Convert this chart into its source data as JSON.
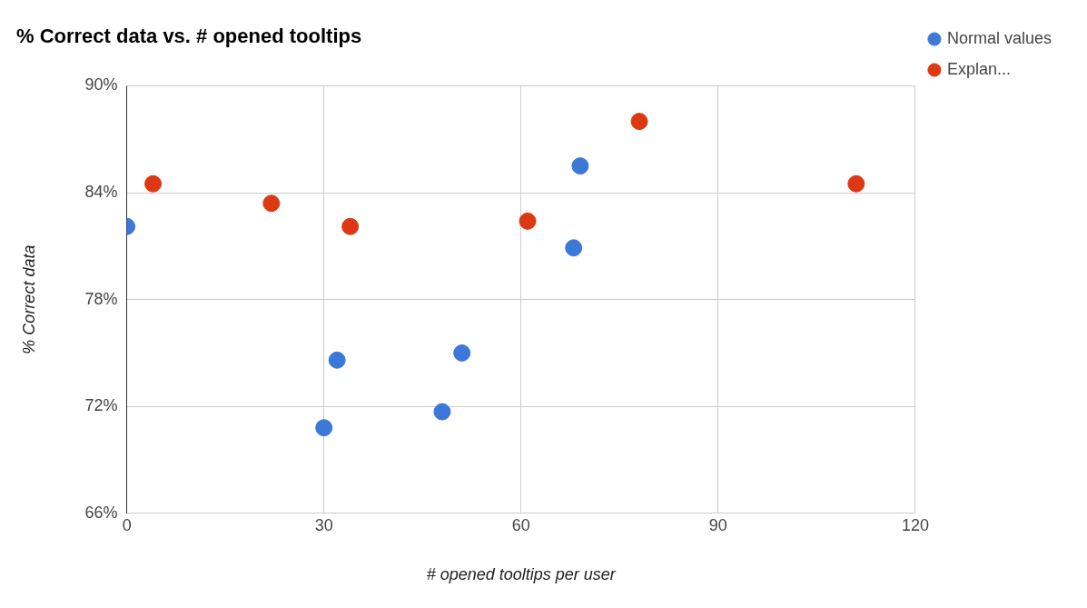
{
  "chart_data": {
    "type": "scatter",
    "title": "% Correct data vs. # opened tooltips",
    "xlabel": "# opened tooltips per user",
    "ylabel": "% Correct data",
    "series": [
      {
        "name": "Normal values",
        "color": "#3c78d8",
        "x": [
          0,
          32,
          30,
          48,
          51,
          68,
          69
        ],
        "values": [
          82.1,
          74.6,
          70.8,
          71.7,
          75.0,
          80.9,
          85.5
        ]
      },
      {
        "name": "Explan...",
        "color": "#dc3912",
        "x": [
          4,
          22,
          34,
          61,
          78,
          111
        ],
        "values": [
          84.5,
          83.4,
          82.1,
          82.4,
          88.0,
          84.5
        ]
      }
    ],
    "xlim": [
      0,
      120
    ],
    "xticks": [
      0,
      30,
      60,
      90,
      120
    ],
    "ylim": [
      66,
      90
    ],
    "yticks": [
      {
        "value": 66,
        "label": "66%"
      },
      {
        "value": 72,
        "label": "72%"
      },
      {
        "value": 78,
        "label": "78%"
      },
      {
        "value": 84,
        "label": "84%"
      },
      {
        "value": 90,
        "label": "90%"
      }
    ],
    "grid": true,
    "legend": "top right",
    "marker": "circle"
  }
}
